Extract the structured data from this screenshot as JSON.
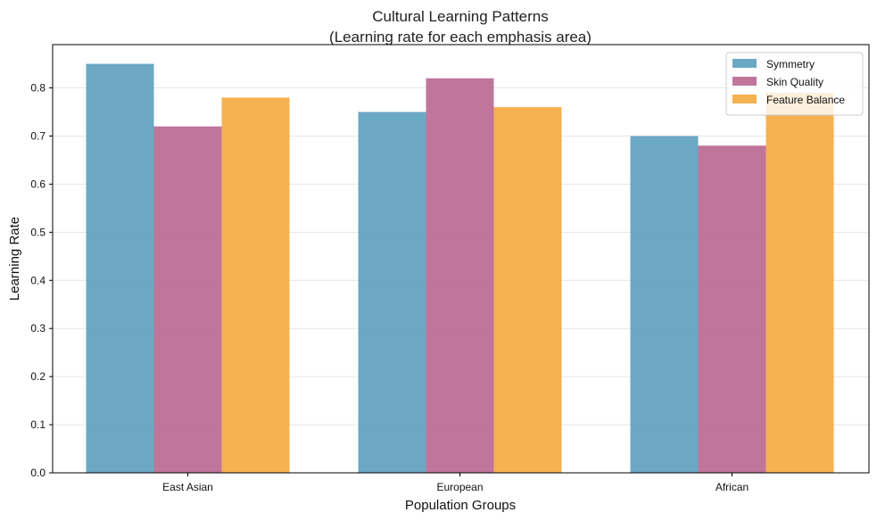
{
  "chart_data": {
    "type": "bar",
    "title_line1": "Cultural Learning Patterns",
    "title_line2": "(Learning rate for each emphasis area)",
    "xlabel": "Population Groups",
    "ylabel": "Learning Rate",
    "categories": [
      "East Asian",
      "European",
      "African"
    ],
    "ylim": [
      0,
      0.89
    ],
    "yticks": [
      0.0,
      0.1,
      0.2,
      0.3,
      0.4,
      0.5,
      0.6,
      0.7,
      0.8
    ],
    "grid": true,
    "legend_position": "top-right",
    "series": [
      {
        "name": "Symmetry",
        "color": "#5b9fc0",
        "values": [
          0.85,
          0.75,
          0.7
        ]
      },
      {
        "name": "Skin Quality",
        "color": "#b96790",
        "values": [
          0.72,
          0.82,
          0.68
        ]
      },
      {
        "name": "Feature Balance",
        "color": "#f5a83d",
        "values": [
          0.78,
          0.76,
          0.79
        ]
      }
    ]
  }
}
